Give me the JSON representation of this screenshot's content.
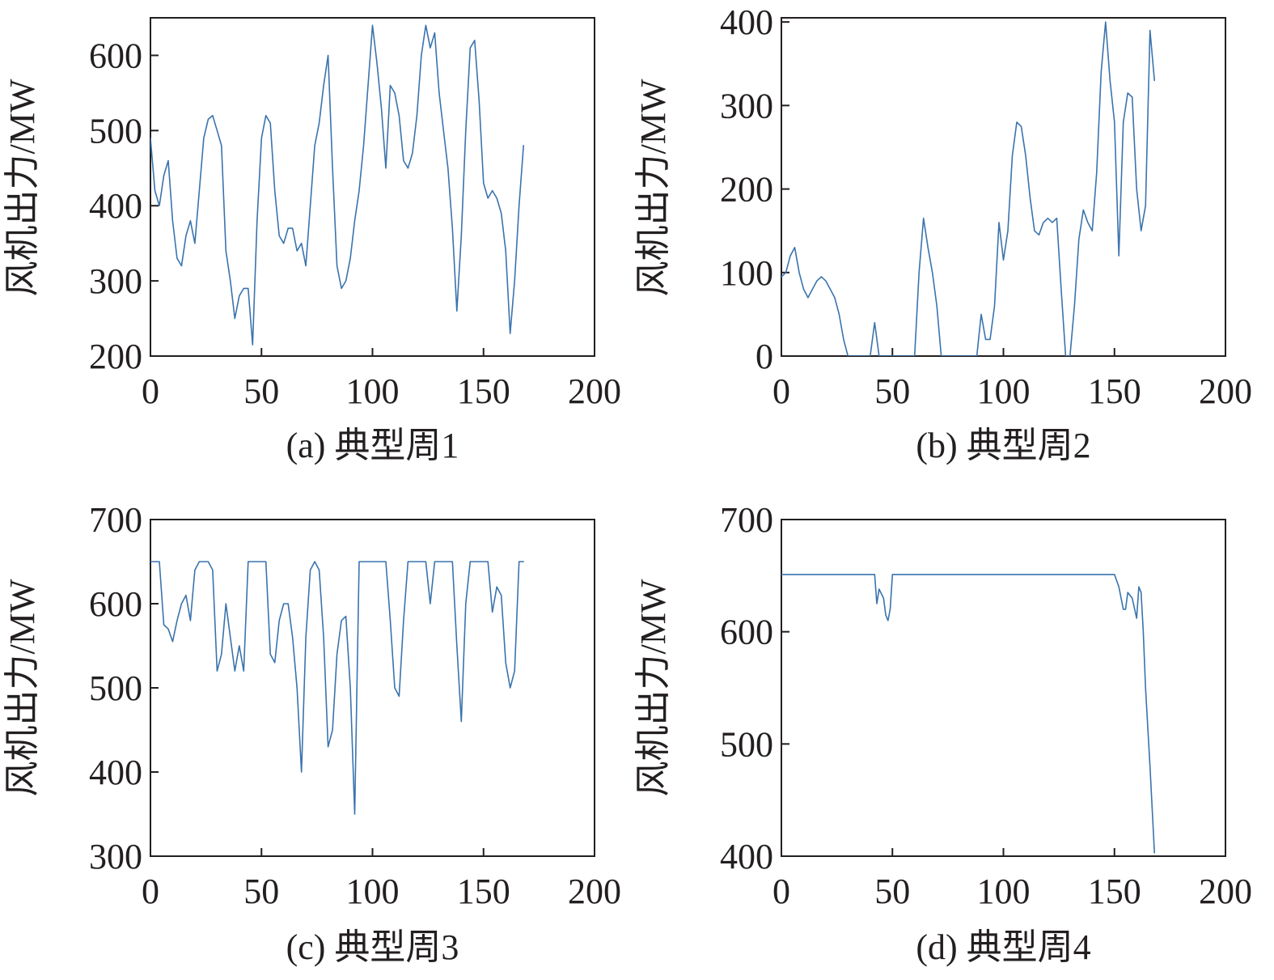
{
  "colors": {
    "series": "#3a73ad",
    "axis": "#231f20"
  },
  "chart_data": [
    {
      "type": "line",
      "caption": "(a) 典型周1",
      "ylabel": "风机出力/MW",
      "xlabel": "",
      "xlim": [
        0,
        200
      ],
      "ylim": [
        200,
        650
      ],
      "x_ticks": [
        "0",
        "50",
        "100",
        "150",
        "200"
      ],
      "y_ticks": [
        "200",
        "300",
        "400",
        "500",
        "600"
      ],
      "grid": false,
      "x": [
        0,
        2,
        4,
        6,
        8,
        10,
        12,
        14,
        16,
        18,
        20,
        22,
        24,
        26,
        28,
        30,
        32,
        34,
        36,
        38,
        40,
        42,
        44,
        46,
        48,
        50,
        52,
        54,
        56,
        58,
        60,
        62,
        64,
        66,
        68,
        70,
        72,
        74,
        76,
        78,
        80,
        82,
        84,
        86,
        88,
        90,
        92,
        94,
        96,
        98,
        100,
        102,
        104,
        106,
        108,
        110,
        112,
        114,
        116,
        118,
        120,
        122,
        124,
        126,
        128,
        130,
        132,
        134,
        136,
        138,
        140,
        142,
        144,
        146,
        148,
        150,
        152,
        154,
        156,
        158,
        160,
        162,
        164,
        166,
        168
      ],
      "series": [
        {
          "values": [
            490,
            420,
            400,
            440,
            460,
            380,
            330,
            320,
            360,
            380,
            350,
            420,
            490,
            515,
            520,
            500,
            480,
            340,
            300,
            250,
            280,
            290,
            290,
            215,
            380,
            490,
            520,
            510,
            420,
            360,
            350,
            370,
            370,
            340,
            350,
            320,
            400,
            480,
            510,
            560,
            600,
            450,
            320,
            290,
            300,
            330,
            380,
            420,
            480,
            560,
            640,
            590,
            530,
            450,
            560,
            550,
            520,
            460,
            450,
            470,
            520,
            600,
            640,
            610,
            630,
            550,
            500,
            450,
            370,
            260,
            360,
            500,
            610,
            620,
            540,
            430,
            410,
            420,
            410,
            390,
            340,
            230,
            300,
            400,
            480
          ]
        }
      ]
    },
    {
      "type": "line",
      "caption": "(b) 典型周2",
      "ylabel": "风机出力/MW",
      "xlabel": "",
      "xlim": [
        0,
        200
      ],
      "ylim": [
        0,
        405
      ],
      "x_ticks": [
        "0",
        "50",
        "100",
        "150",
        "200"
      ],
      "y_ticks": [
        "0",
        "100",
        "200",
        "300",
        "400"
      ],
      "grid": false,
      "x": [
        0,
        2,
        4,
        6,
        8,
        10,
        12,
        14,
        16,
        18,
        20,
        22,
        24,
        26,
        28,
        30,
        32,
        34,
        36,
        38,
        40,
        42,
        44,
        46,
        48,
        50,
        52,
        54,
        56,
        58,
        60,
        62,
        64,
        66,
        68,
        70,
        72,
        74,
        76,
        78,
        80,
        82,
        84,
        86,
        88,
        90,
        92,
        94,
        96,
        98,
        100,
        102,
        104,
        106,
        108,
        110,
        112,
        114,
        116,
        118,
        120,
        122,
        124,
        126,
        128,
        130,
        132,
        134,
        136,
        138,
        140,
        142,
        144,
        146,
        148,
        150,
        152,
        154,
        156,
        158,
        160,
        162,
        164,
        166,
        168
      ],
      "series": [
        {
          "values": [
            95,
            100,
            120,
            130,
            100,
            80,
            70,
            80,
            90,
            95,
            90,
            80,
            70,
            50,
            20,
            0,
            0,
            0,
            0,
            0,
            0,
            40,
            0,
            0,
            0,
            0,
            0,
            0,
            0,
            0,
            0,
            100,
            165,
            130,
            100,
            60,
            0,
            0,
            0,
            0,
            0,
            0,
            0,
            0,
            0,
            50,
            20,
            20,
            60,
            160,
            115,
            150,
            240,
            280,
            275,
            240,
            190,
            150,
            145,
            160,
            165,
            160,
            165,
            80,
            0,
            0,
            60,
            140,
            175,
            160,
            150,
            220,
            340,
            400,
            330,
            280,
            120,
            280,
            315,
            310,
            200,
            150,
            180,
            390,
            330
          ]
        }
      ]
    },
    {
      "type": "line",
      "caption": "(c) 典型周3",
      "ylabel": "风机出力/MW",
      "xlabel": "",
      "xlim": [
        0,
        200
      ],
      "ylim": [
        300,
        700
      ],
      "x_ticks": [
        "0",
        "50",
        "100",
        "150",
        "200"
      ],
      "y_ticks": [
        "300",
        "400",
        "500",
        "600",
        "700"
      ],
      "grid": false,
      "x": [
        0,
        2,
        4,
        6,
        8,
        10,
        12,
        14,
        16,
        18,
        20,
        22,
        24,
        26,
        28,
        30,
        32,
        34,
        36,
        38,
        40,
        42,
        44,
        46,
        48,
        50,
        52,
        54,
        56,
        58,
        60,
        62,
        64,
        66,
        68,
        70,
        72,
        74,
        76,
        78,
        80,
        82,
        84,
        86,
        88,
        90,
        92,
        94,
        96,
        98,
        100,
        102,
        104,
        106,
        108,
        110,
        112,
        114,
        116,
        118,
        120,
        122,
        124,
        126,
        128,
        130,
        132,
        134,
        136,
        138,
        140,
        142,
        144,
        146,
        148,
        150,
        152,
        154,
        156,
        158,
        160,
        162,
        164,
        166,
        168
      ],
      "series": [
        {
          "values": [
            650,
            650,
            650,
            575,
            570,
            555,
            580,
            600,
            610,
            580,
            640,
            650,
            650,
            650,
            640,
            520,
            540,
            600,
            560,
            520,
            550,
            520,
            650,
            650,
            650,
            650,
            650,
            540,
            530,
            580,
            600,
            600,
            560,
            500,
            400,
            560,
            640,
            650,
            640,
            560,
            430,
            450,
            540,
            580,
            585,
            500,
            350,
            650,
            650,
            650,
            650,
            650,
            650,
            650,
            580,
            500,
            490,
            580,
            650,
            650,
            650,
            650,
            650,
            600,
            650,
            650,
            650,
            650,
            650,
            550,
            460,
            600,
            650,
            650,
            650,
            650,
            650,
            590,
            620,
            610,
            530,
            500,
            520,
            650,
            650
          ]
        }
      ]
    },
    {
      "type": "line",
      "caption": "(d) 典型周4",
      "ylabel": "风机出力/MW",
      "xlabel": "",
      "xlim": [
        0,
        200
      ],
      "ylim": [
        400,
        700
      ],
      "x_ticks": [
        "0",
        "50",
        "100",
        "150",
        "200"
      ],
      "y_ticks": [
        "400",
        "500",
        "600",
        "700"
      ],
      "grid": false,
      "x": [
        0,
        5,
        10,
        15,
        20,
        25,
        30,
        35,
        40,
        42,
        43,
        44,
        46,
        47,
        48,
        49,
        50,
        51,
        55,
        60,
        70,
        80,
        90,
        100,
        110,
        120,
        130,
        140,
        150,
        152,
        154,
        155,
        156,
        158,
        160,
        161,
        162,
        163,
        164,
        166,
        168
      ],
      "series": [
        {
          "values": [
            651,
            651,
            651,
            651,
            651,
            651,
            651,
            651,
            651,
            651,
            625,
            638,
            630,
            615,
            610,
            620,
            651,
            651,
            651,
            651,
            651,
            651,
            651,
            651,
            651,
            651,
            651,
            651,
            651,
            640,
            620,
            620,
            635,
            630,
            612,
            640,
            635,
            600,
            550,
            480,
            403
          ]
        }
      ]
    }
  ]
}
